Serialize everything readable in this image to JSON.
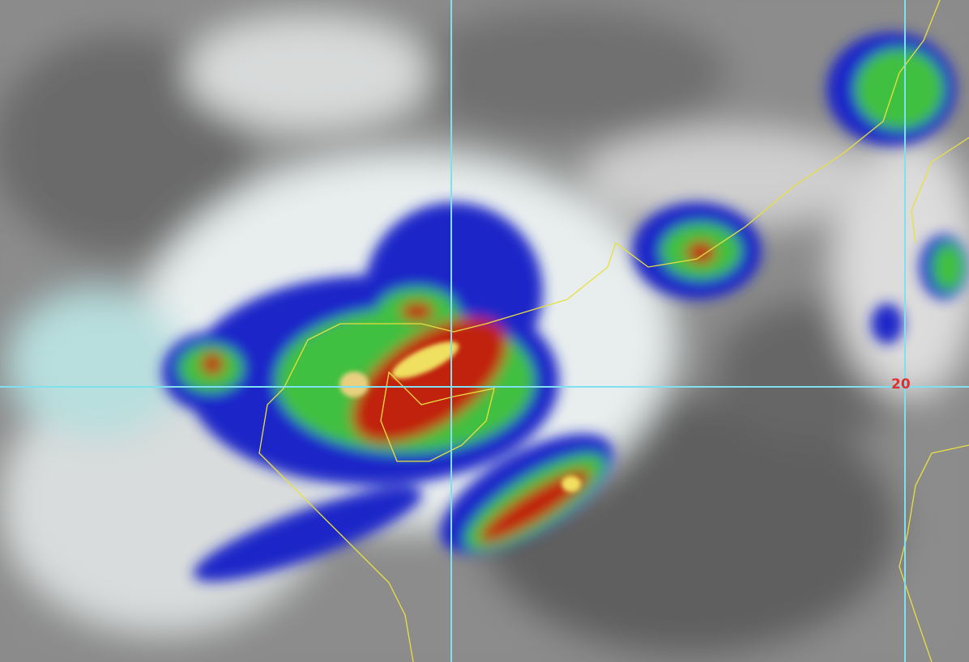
{
  "map": {
    "grid_label_latitude": "20",
    "colors": {
      "grid": "#7fe0f0",
      "coastline": "#e8e040",
      "cloud_cold": "#ffffff",
      "enhance_blue": "#1020c0",
      "enhance_green": "#40c040",
      "enhance_red": "#c02010",
      "enhance_yellow": "#f0e060",
      "background": "#808080"
    },
    "imagery": "infrared-enhanced-satellite"
  }
}
